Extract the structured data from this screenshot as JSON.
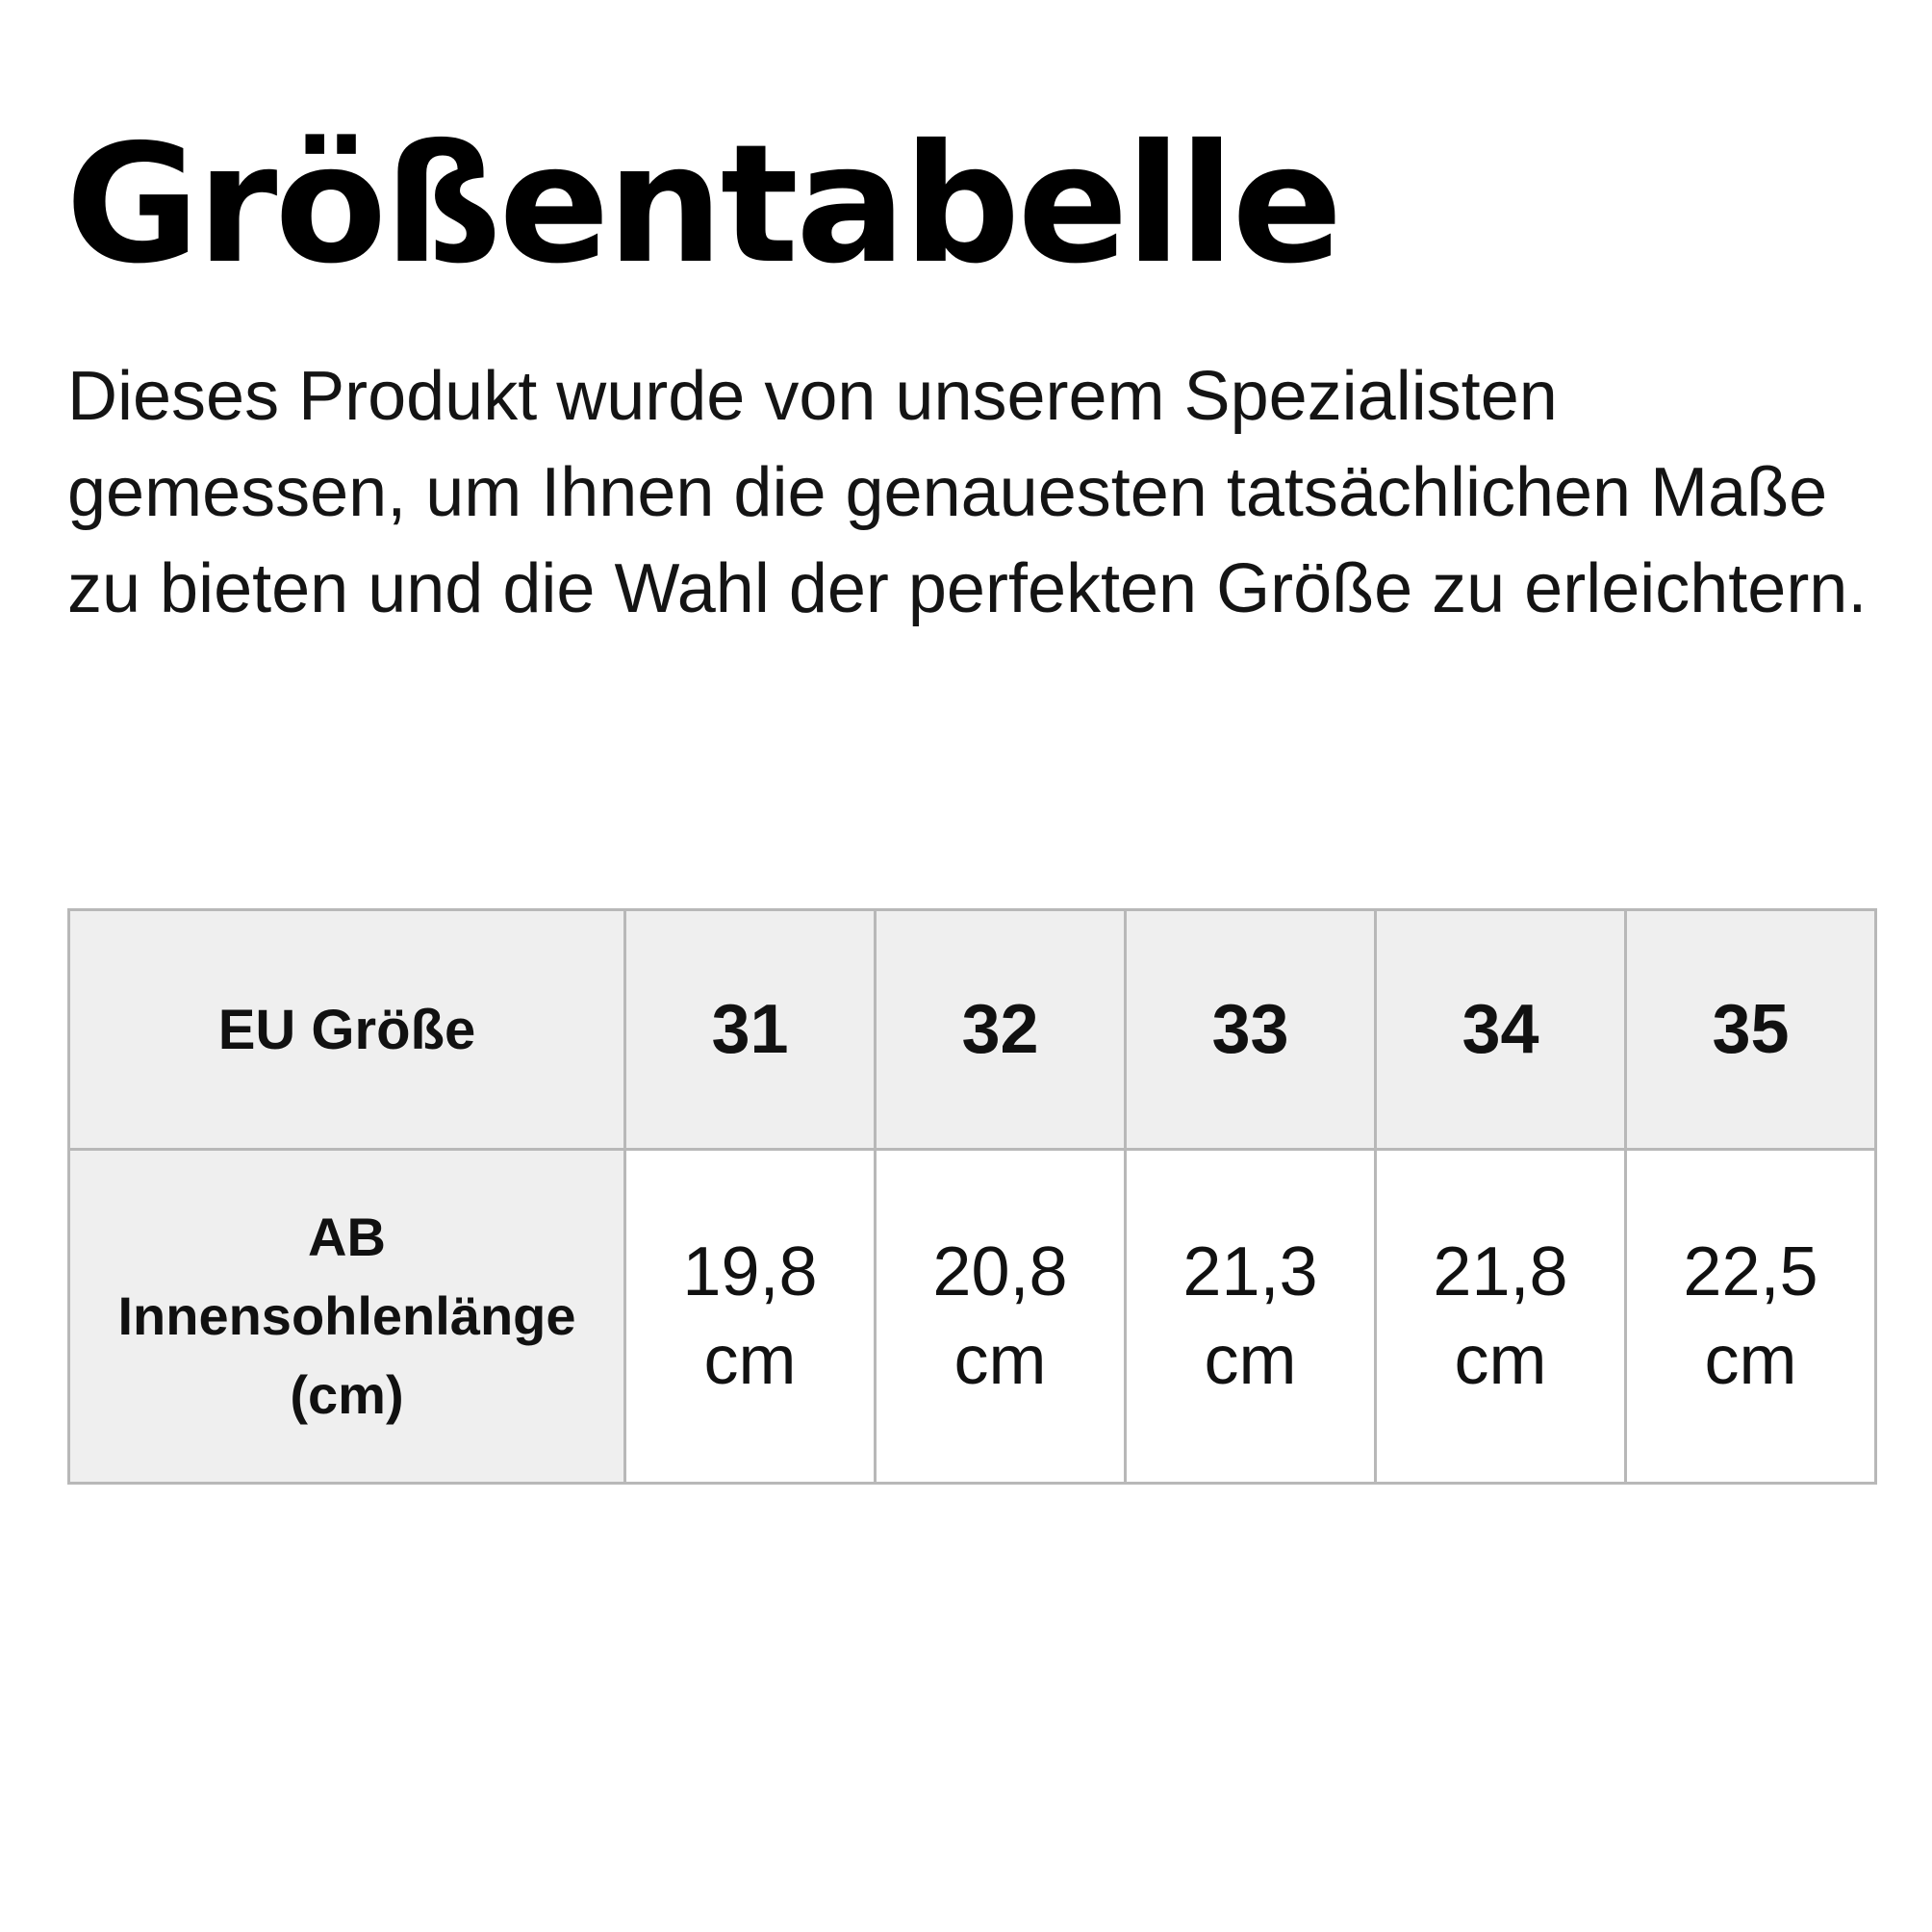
{
  "title": "Größentabelle",
  "intro": "Dieses Produkt wurde von unserem Spezialisten gemessen, um Ihnen die genauesten tatsächlichen Maße zu bieten und die Wahl der perfekten Größe zu erleichtern.",
  "table": {
    "header_label": "EU Größe",
    "sizes": [
      "31",
      "32",
      "33",
      "34",
      "35"
    ],
    "row_label": {
      "line1": "AB",
      "line2": "Innensohlenlänge",
      "line3": "(cm)"
    },
    "values": [
      {
        "number": "19,8",
        "unit": "cm"
      },
      {
        "number": "20,8",
        "unit": "cm"
      },
      {
        "number": "21,3",
        "unit": "cm"
      },
      {
        "number": "21,8",
        "unit": "cm"
      },
      {
        "number": "22,5",
        "unit": "cm"
      }
    ]
  }
}
